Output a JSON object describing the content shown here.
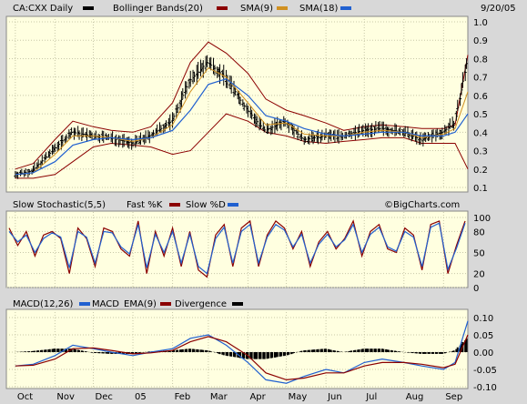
{
  "chart_data": [
    {
      "type": "candlestick",
      "panel": "price",
      "title": "CA:CXX Daily",
      "date": "9/20/05",
      "legend": [
        {
          "label": "CA:CXX Daily",
          "color": "#000000"
        },
        {
          "label": "Bollinger Bands(20)",
          "color": "#8b0000"
        },
        {
          "label": "SMA(9)",
          "color": "#d09020"
        },
        {
          "label": "SMA(18)",
          "color": "#2060d0"
        }
      ],
      "ylim": [
        0.1,
        1.0
      ],
      "yticks": [
        "1.0",
        "0.9",
        "0.8",
        "0.7",
        "0.6",
        "0.5",
        "0.4",
        "0.3",
        "0.2",
        "0.1"
      ],
      "grid": true,
      "x": [
        "2004-10-01",
        "2004-10-15",
        "2004-11-01",
        "2004-11-15",
        "2004-12-01",
        "2004-12-15",
        "2005-01-01",
        "2005-01-15",
        "2005-02-01",
        "2005-02-15",
        "2005-03-01",
        "2005-03-15",
        "2005-04-01",
        "2005-04-15",
        "2005-05-01",
        "2005-05-15",
        "2005-06-01",
        "2005-06-15",
        "2005-07-01",
        "2005-07-15",
        "2005-08-01",
        "2005-08-15",
        "2005-09-01",
        "2005-09-10",
        "2005-09-20"
      ],
      "close": [
        0.17,
        0.19,
        0.31,
        0.4,
        0.38,
        0.37,
        0.34,
        0.38,
        0.46,
        0.68,
        0.78,
        0.7,
        0.52,
        0.41,
        0.46,
        0.36,
        0.38,
        0.38,
        0.41,
        0.42,
        0.4,
        0.36,
        0.4,
        0.45,
        0.78
      ],
      "sma9": [
        0.17,
        0.18,
        0.28,
        0.38,
        0.38,
        0.37,
        0.35,
        0.37,
        0.44,
        0.62,
        0.75,
        0.7,
        0.56,
        0.44,
        0.45,
        0.39,
        0.38,
        0.38,
        0.4,
        0.41,
        0.4,
        0.37,
        0.39,
        0.42,
        0.62
      ],
      "sma18": [
        0.17,
        0.18,
        0.24,
        0.33,
        0.36,
        0.37,
        0.36,
        0.37,
        0.41,
        0.52,
        0.66,
        0.69,
        0.6,
        0.49,
        0.46,
        0.42,
        0.39,
        0.38,
        0.39,
        0.4,
        0.4,
        0.38,
        0.38,
        0.4,
        0.5
      ],
      "bb_upper": [
        0.2,
        0.23,
        0.36,
        0.46,
        0.43,
        0.41,
        0.4,
        0.43,
        0.56,
        0.78,
        0.89,
        0.83,
        0.72,
        0.58,
        0.52,
        0.49,
        0.45,
        0.41,
        0.43,
        0.44,
        0.43,
        0.42,
        0.42,
        0.44,
        0.82
      ],
      "bb_lower": [
        0.15,
        0.15,
        0.17,
        0.24,
        0.32,
        0.34,
        0.33,
        0.32,
        0.28,
        0.3,
        0.4,
        0.5,
        0.46,
        0.4,
        0.38,
        0.35,
        0.34,
        0.35,
        0.36,
        0.37,
        0.37,
        0.34,
        0.34,
        0.34,
        0.2
      ]
    },
    {
      "type": "line",
      "panel": "stochastic",
      "legend": [
        {
          "label": "Slow Stochastic(5,5)",
          "color": null
        },
        {
          "label": "Fast %K",
          "color": "#8b0000"
        },
        {
          "label": "Slow %D",
          "color": "#2060d0"
        }
      ],
      "ylim": [
        0,
        100
      ],
      "yticks": [
        "100",
        "80",
        "50",
        "20",
        "0"
      ],
      "grid": true,
      "series": [
        {
          "values": [
            85,
            60,
            80,
            45,
            75,
            80,
            70,
            20,
            85,
            70,
            30,
            85,
            80,
            55,
            45,
            95,
            20,
            80,
            45,
            85,
            30,
            80,
            25,
            15,
            75,
            90,
            30,
            85,
            95,
            30,
            75,
            95,
            85,
            55,
            80,
            30,
            65,
            80,
            55,
            70,
            95,
            45,
            80,
            90,
            55,
            50,
            85,
            75,
            25,
            90,
            95,
            20,
            60,
            95
          ]
        },
        {
          "values": [
            80,
            65,
            75,
            50,
            70,
            78,
            72,
            28,
            80,
            72,
            35,
            80,
            78,
            58,
            48,
            90,
            28,
            76,
            50,
            80,
            35,
            76,
            30,
            20,
            70,
            86,
            35,
            80,
            90,
            35,
            72,
            90,
            82,
            58,
            76,
            35,
            62,
            76,
            58,
            68,
            90,
            50,
            76,
            86,
            58,
            52,
            80,
            72,
            30,
            86,
            92,
            26,
            56,
            92
          ]
        }
      ]
    },
    {
      "type": "line",
      "panel": "macd",
      "legend": [
        {
          "label": "MACD(12,26)",
          "color": null
        },
        {
          "label": "MACD",
          "color": "#2060d0"
        },
        {
          "label": "EMA(9)",
          "color": "#8b0000"
        },
        {
          "label": "Divergence",
          "color": "#000000"
        }
      ],
      "ylim": [
        -0.1,
        0.1
      ],
      "yticks": [
        "0.10",
        "0.05",
        "0.00",
        "-0.05",
        "-0.10"
      ],
      "grid": true,
      "series": [
        {
          "values": [
            -0.04,
            -0.035,
            -0.01,
            0.02,
            0.01,
            0.0,
            -0.01,
            0.0,
            0.01,
            0.04,
            0.05,
            0.02,
            -0.03,
            -0.08,
            -0.09,
            -0.07,
            -0.05,
            -0.06,
            -0.03,
            -0.02,
            -0.03,
            -0.04,
            -0.05,
            -0.03,
            0.09
          ]
        },
        {
          "values": [
            -0.04,
            -0.038,
            -0.02,
            0.01,
            0.012,
            0.005,
            -0.005,
            -0.002,
            0.005,
            0.03,
            0.045,
            0.03,
            -0.01,
            -0.06,
            -0.08,
            -0.075,
            -0.06,
            -0.06,
            -0.04,
            -0.03,
            -0.03,
            -0.035,
            -0.045,
            -0.035,
            0.05
          ]
        },
        {
          "values": [
            0.0,
            0.003,
            0.01,
            0.01,
            -0.002,
            -0.005,
            -0.005,
            0.002,
            0.005,
            0.01,
            0.005,
            -0.01,
            -0.02,
            -0.02,
            -0.01,
            0.005,
            0.01,
            0.0,
            0.01,
            0.01,
            0.0,
            -0.005,
            -0.005,
            0.005,
            0.04
          ]
        }
      ]
    }
  ],
  "x_axis": {
    "labels": [
      "Oct",
      "Nov",
      "Dec",
      "05",
      "Feb",
      "Mar",
      "Apr",
      "May",
      "Jun",
      "Jul",
      "Aug",
      "Sep"
    ]
  },
  "watermark": "©BigCharts.com"
}
